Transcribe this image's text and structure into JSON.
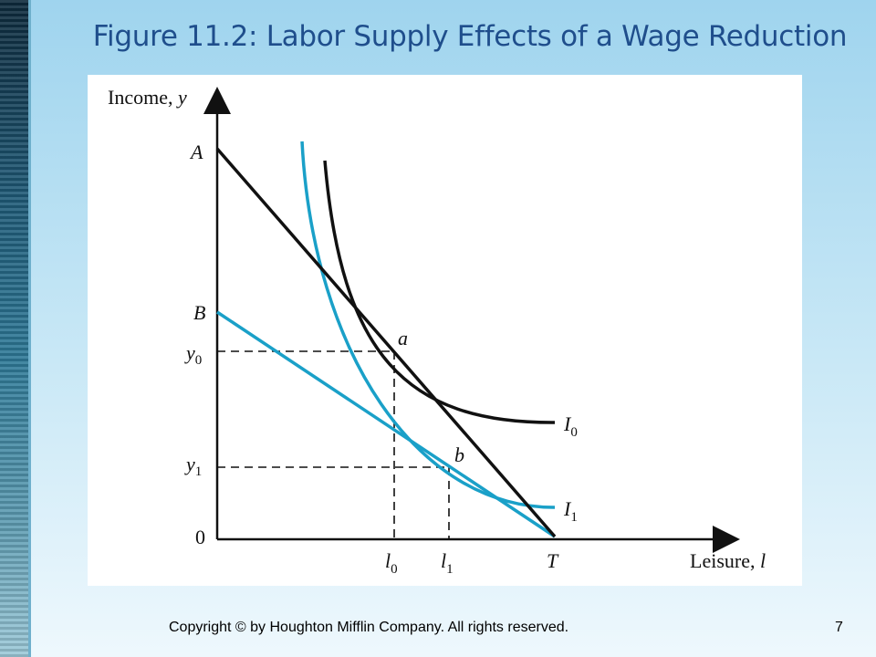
{
  "slide": {
    "title": "Figure 11.2:  Labor Supply Effects of a Wage Reduction",
    "footer": "Copyright © by Houghton Mifflin Company. All rights reserved.",
    "page_number": "7"
  },
  "figure": {
    "y_axis": {
      "name": "Income, ",
      "var": "y"
    },
    "x_axis": {
      "name": "Leisure, ",
      "var": "l"
    },
    "origin": "0",
    "points": {
      "A": "A",
      "B": "B",
      "a": "a",
      "b": "b",
      "T": "T"
    },
    "y_ticks": {
      "y0_base": "y",
      "y0_sub": "0",
      "y1_base": "y",
      "y1_sub": "1"
    },
    "x_ticks": {
      "l0_base": "l",
      "l0_sub": "0",
      "l1_base": "l",
      "l1_sub": "1"
    },
    "curves": {
      "I0_base": "I",
      "I0_sub": "0",
      "I1_base": "I",
      "I1_sub": "1"
    },
    "colors": {
      "original": "#111111",
      "new": "#1aa0c8"
    }
  }
}
